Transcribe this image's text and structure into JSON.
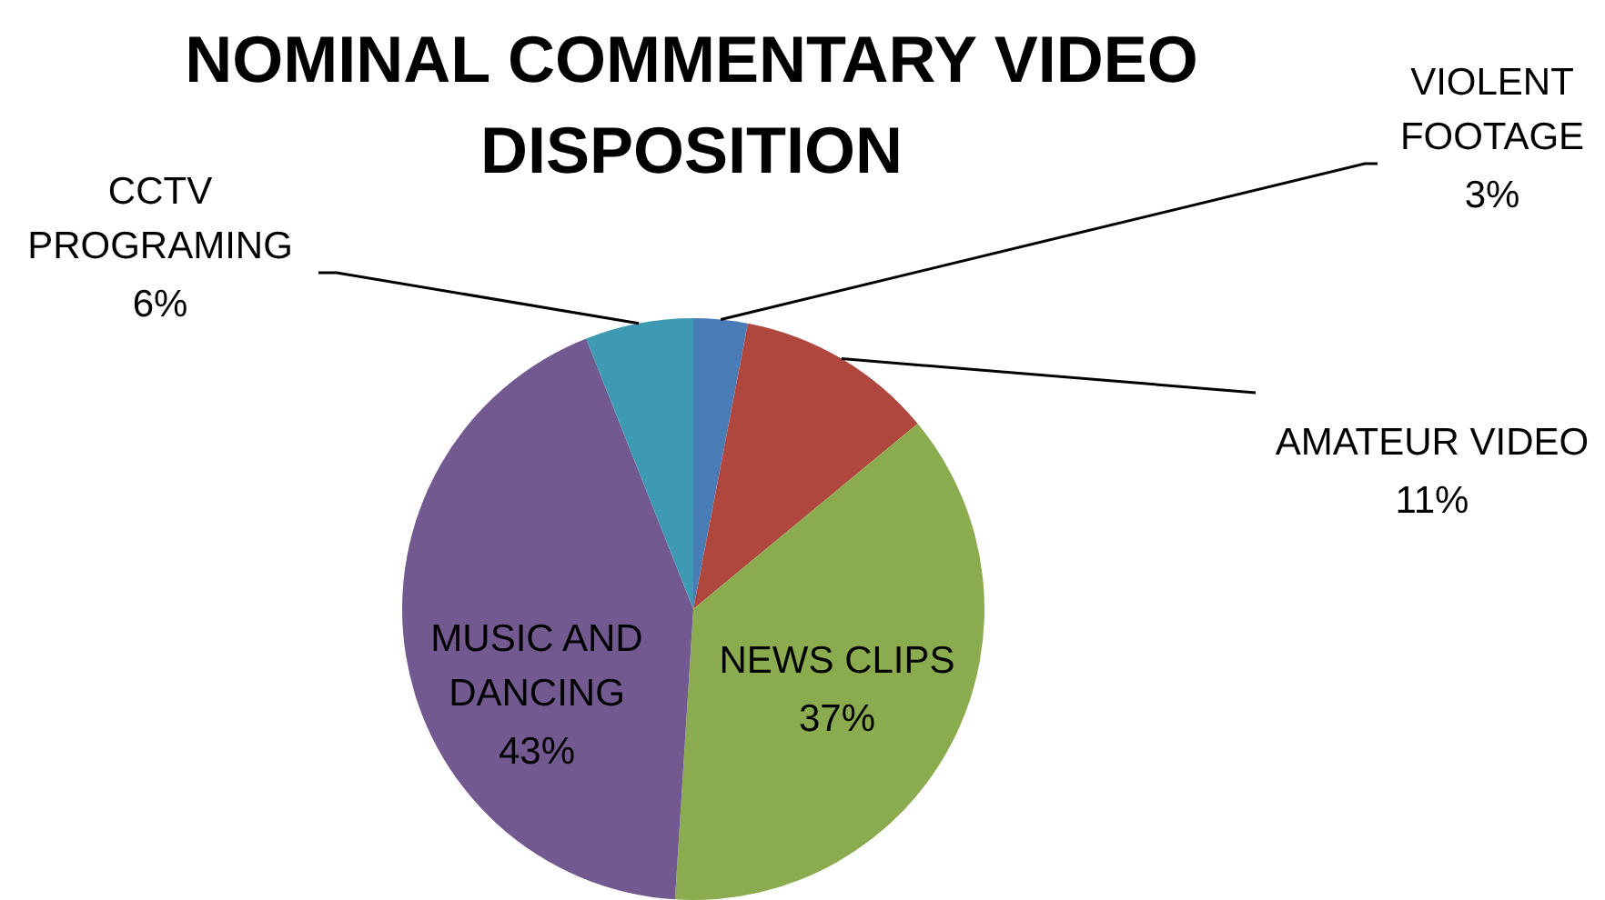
{
  "chart_data": {
    "type": "pie",
    "title": "NOMINAL COMMENTARY VIDEO DISPOSITION",
    "categories": [
      "VIOLENT FOOTAGE",
      "AMATEUR VIDEO",
      "NEWS CLIPS",
      "MUSIC AND DANCING",
      "CCTV PROGRAMING"
    ],
    "values": [
      3,
      11,
      37,
      43,
      6
    ],
    "value_labels": [
      "3%",
      "11%",
      "37%",
      "43%",
      "6%"
    ],
    "colors": [
      "#4a7cb8",
      "#b0473f",
      "#8aab4e",
      "#72598f",
      "#3e9ab3"
    ]
  }
}
